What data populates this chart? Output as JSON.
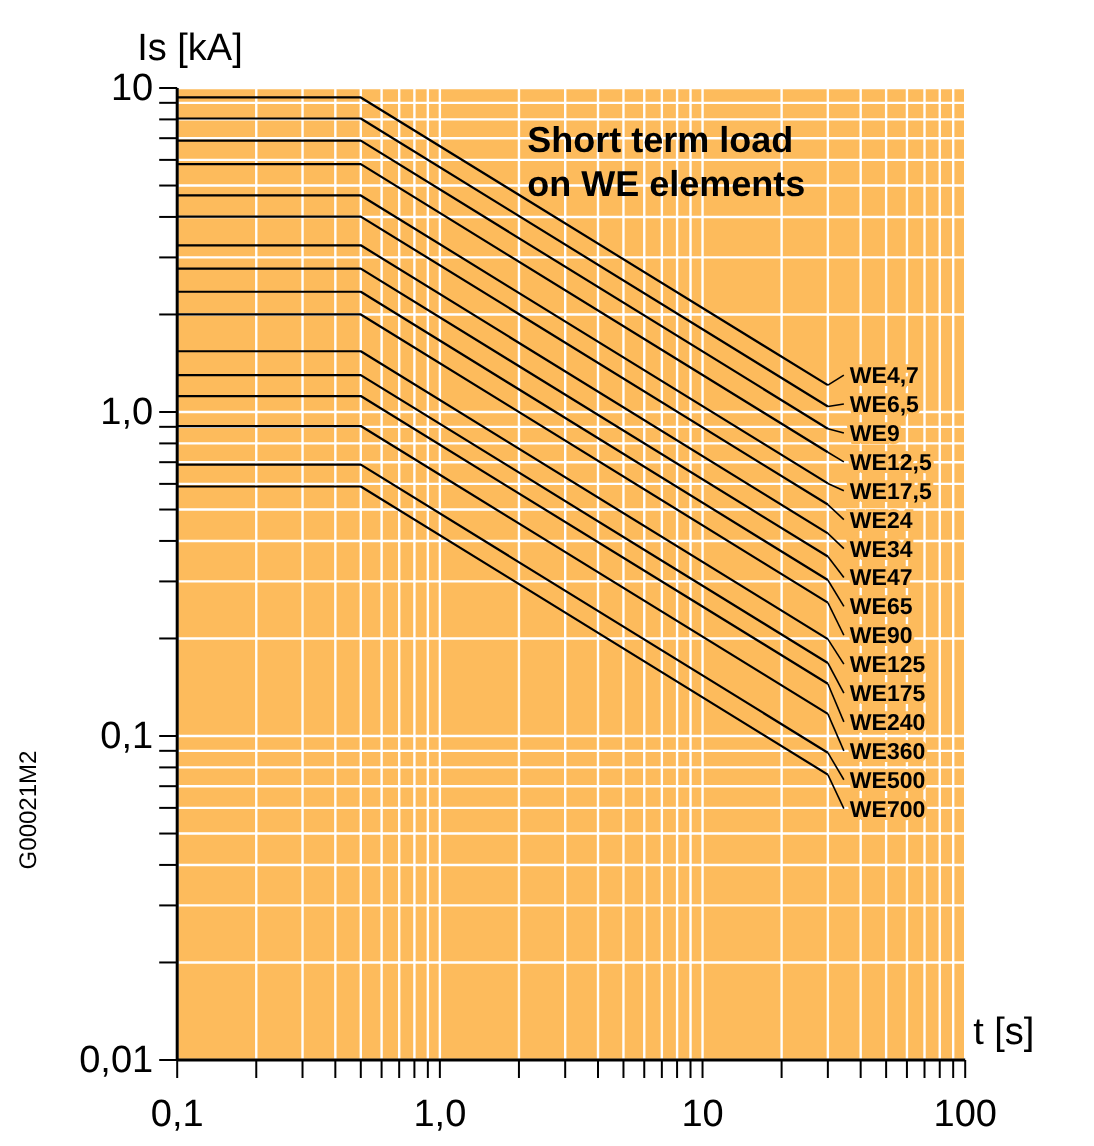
{
  "chart_data": {
    "type": "line",
    "title": "Short term load on WE elements",
    "xlabel": "t [s]",
    "ylabel": "Is [kA]",
    "log": "xy",
    "grid": true,
    "legend": "right",
    "marker": "none",
    "line_style": "solid",
    "annotations": [
      "G00021M2"
    ],
    "xlim": [
      0.1,
      100
    ],
    "ylim": [
      0.01,
      10
    ],
    "xticks": [
      {
        "value": 0.1,
        "label": "0,1"
      },
      {
        "value": 0.2,
        "label": null
      },
      {
        "value": 0.3,
        "label": null
      },
      {
        "value": 0.4,
        "label": null
      },
      {
        "value": 0.5,
        "label": null
      },
      {
        "value": 0.6,
        "label": null
      },
      {
        "value": 0.7,
        "label": null
      },
      {
        "value": 0.8,
        "label": null
      },
      {
        "value": 0.9,
        "label": null
      },
      {
        "value": 1,
        "label": "1,0"
      },
      {
        "value": 2,
        "label": null
      },
      {
        "value": 3,
        "label": null
      },
      {
        "value": 4,
        "label": null
      },
      {
        "value": 5,
        "label": null
      },
      {
        "value": 6,
        "label": null
      },
      {
        "value": 7,
        "label": null
      },
      {
        "value": 8,
        "label": null
      },
      {
        "value": 9,
        "label": null
      },
      10,
      {
        "value": 20,
        "label": null
      },
      {
        "value": 30,
        "label": null
      },
      {
        "value": 40,
        "label": null
      },
      {
        "value": 50,
        "label": null
      },
      {
        "value": 60,
        "label": null
      },
      {
        "value": 70,
        "label": null
      },
      {
        "value": 80,
        "label": null
      },
      {
        "value": 90,
        "label": null
      },
      100
    ],
    "yticks": [
      {
        "value": 0.01,
        "label": "0,01"
      },
      {
        "value": 0.02,
        "label": null
      },
      {
        "value": 0.03,
        "label": null
      },
      {
        "value": 0.04,
        "label": null
      },
      {
        "value": 0.05,
        "label": null
      },
      {
        "value": 0.06,
        "label": null
      },
      {
        "value": 0.07,
        "label": null
      },
      {
        "value": 0.08,
        "label": null
      },
      {
        "value": 0.09,
        "label": null
      },
      {
        "value": 0.1,
        "label": "0,1"
      },
      {
        "value": 0.2,
        "label": null
      },
      {
        "value": 0.3,
        "label": null
      },
      {
        "value": 0.4,
        "label": null
      },
      {
        "value": 0.5,
        "label": null
      },
      {
        "value": 0.6,
        "label": null
      },
      {
        "value": 0.7,
        "label": null
      },
      {
        "value": 0.8,
        "label": null
      },
      {
        "value": 0.9,
        "label": null
      },
      {
        "value": 1,
        "label": "1,0"
      },
      {
        "value": 2,
        "label": null
      },
      {
        "value": 3,
        "label": null
      },
      {
        "value": 4,
        "label": null
      },
      {
        "value": 5,
        "label": null
      },
      {
        "value": 6,
        "label": null
      },
      {
        "value": 7,
        "label": null
      },
      {
        "value": 8,
        "label": null
      },
      {
        "value": 9,
        "label": null
      },
      10
    ],
    "x": [
      0.1,
      0.5,
      30
    ],
    "series": [
      {
        "name": "WE4,7",
        "color": "#000000",
        "values": [
          9.35,
          9.35,
          1.21
        ]
      },
      {
        "name": "WE6,5",
        "color": "#000000",
        "values": [
          8.05,
          8.05,
          1.04
        ]
      },
      {
        "name": "WE9",
        "color": "#000000",
        "values": [
          6.88,
          6.88,
          0.888
        ]
      },
      {
        "name": "WE12,5",
        "color": "#000000",
        "values": [
          5.82,
          5.82,
          0.751
        ]
      },
      {
        "name": "WE17,5",
        "color": "#000000",
        "values": [
          4.66,
          4.66,
          0.602
        ]
      },
      {
        "name": "WE24",
        "color": "#000000",
        "values": [
          4.01,
          4.01,
          0.518
        ]
      },
      {
        "name": "WE34",
        "color": "#000000",
        "values": [
          3.27,
          3.27,
          0.422
        ]
      },
      {
        "name": "WE47",
        "color": "#000000",
        "values": [
          2.77,
          2.77,
          0.358
        ]
      },
      {
        "name": "WE65",
        "color": "#000000",
        "values": [
          2.35,
          2.35,
          0.303
        ]
      },
      {
        "name": "WE90",
        "color": "#000000",
        "values": [
          2.0,
          2.0,
          0.258
        ]
      },
      {
        "name": "WE125",
        "color": "#000000",
        "values": [
          1.54,
          1.54,
          0.199
        ]
      },
      {
        "name": "WE175",
        "color": "#000000",
        "values": [
          1.3,
          1.3,
          0.168
        ]
      },
      {
        "name": "WE240",
        "color": "#000000",
        "values": [
          1.12,
          1.12,
          0.145
        ]
      },
      {
        "name": "WE360",
        "color": "#000000",
        "values": [
          0.905,
          0.905,
          0.117
        ]
      },
      {
        "name": "WE500",
        "color": "#000000",
        "values": [
          0.688,
          0.688,
          0.0888
        ]
      },
      {
        "name": "WE700",
        "color": "#000000",
        "values": [
          0.589,
          0.589,
          0.076
        ]
      }
    ]
  }
}
